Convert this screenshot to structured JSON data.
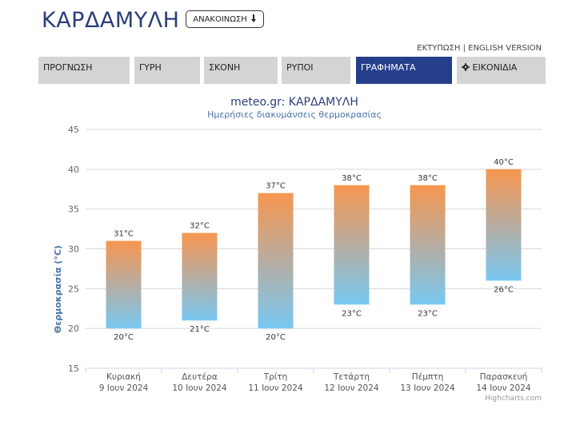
{
  "header": {
    "title": "ΚΑΡΔΑΜΥΛΗ",
    "announce_label": "ΑΝΑΚΟΙΝΩΣΗ",
    "announce_icon": "arrow-down-icon",
    "print_label": "ΕΚΤΥΠΩΣΗ",
    "separator": "|",
    "english_label": "ENGLISH VERSION"
  },
  "tabs": [
    {
      "label": "ΠΡΟΓΝΩΣΗ",
      "active": false
    },
    {
      "label": "ΓΥΡΗ",
      "active": false
    },
    {
      "label": "ΣΚΟΝΗ",
      "active": false
    },
    {
      "label": "ΡΥΠΟΙ",
      "active": false
    },
    {
      "label": "ΓΡΑΦΗΜΑΤΑ",
      "active": true
    },
    {
      "label": "ΕΙΚΟΝΙΔΙΑ",
      "active": false,
      "icon": "gear-icon"
    }
  ],
  "colors": {
    "accent": "#253f8a",
    "tab_bg": "#d4d4d4",
    "bar_top": "#f7964f",
    "bar_bottom": "#79c8f2",
    "title_text": "#2c3e78",
    "subtitle_text": "#4a74a8"
  },
  "chart_data": {
    "type": "bar",
    "subtype": "columnrange",
    "title": "meteo.gr: ΚΑΡΔΑΜΥΛΗ",
    "subtitle": "Ημερήσιες διακυμάνσεις θερμοκρασίας",
    "ylabel": "Θερμοκρασία (°C)",
    "ylim": [
      15,
      45
    ],
    "yticks": [
      15,
      20,
      25,
      30,
      35,
      40,
      45
    ],
    "grid": true,
    "categories": [
      {
        "day": "Κυριακή",
        "date": "9 Ιουν 2024"
      },
      {
        "day": "Δευτέρα",
        "date": "10 Ιουν 2024"
      },
      {
        "day": "Τρίτη",
        "date": "11 Ιουν 2024"
      },
      {
        "day": "Τετάρτη",
        "date": "12 Ιουν 2024"
      },
      {
        "day": "Πέμπτη",
        "date": "13 Ιουν 2024"
      },
      {
        "day": "Παρασκευή",
        "date": "14 Ιουν 2024"
      }
    ],
    "low": [
      20,
      21,
      20,
      23,
      23,
      26
    ],
    "high": [
      31,
      32,
      37,
      38,
      38,
      40
    ],
    "value_suffix": "°C",
    "credit": "Highcharts.com"
  }
}
